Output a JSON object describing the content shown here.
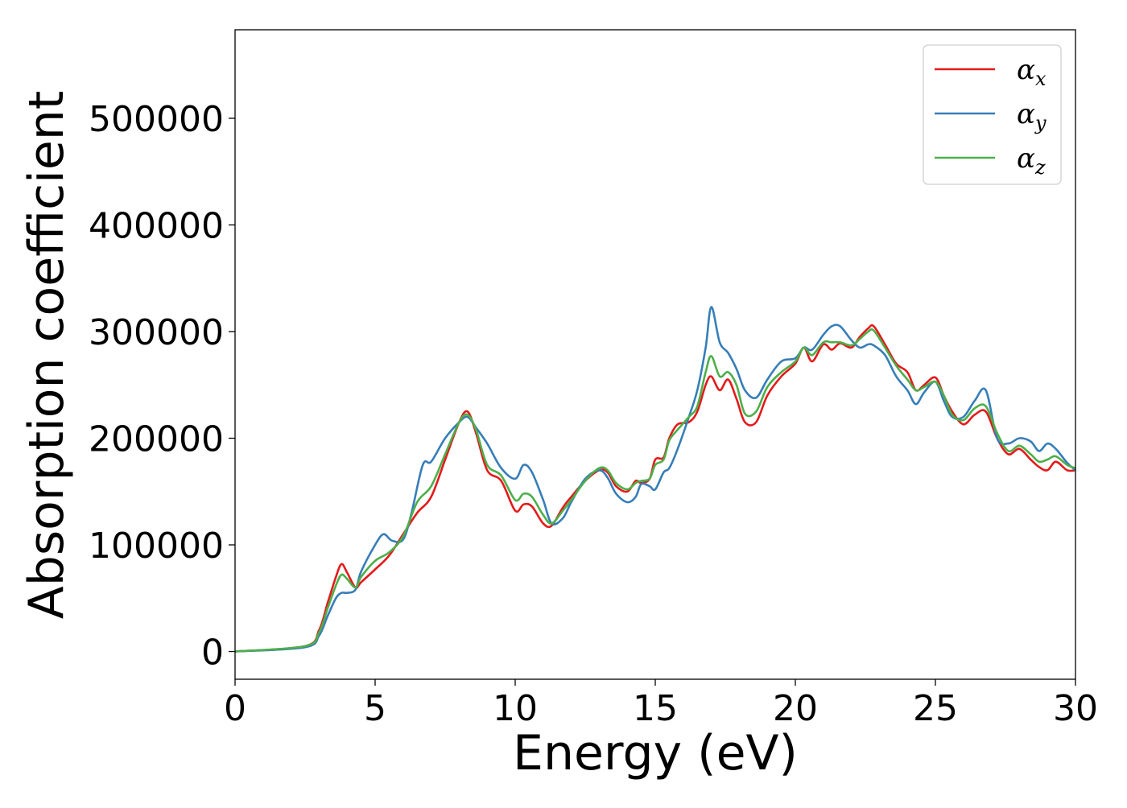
{
  "chart_data": {
    "type": "line",
    "xlabel": "Energy (eV)",
    "ylabel": "Absorption coefficient",
    "xlim": [
      0,
      30
    ],
    "ylim": [
      -26000,
      583000
    ],
    "x_ticks": [
      0,
      5,
      10,
      15,
      20,
      25,
      30
    ],
    "y_ticks": [
      0,
      100000,
      200000,
      300000,
      400000,
      500000
    ],
    "grid": false,
    "legend_position": "top-right",
    "series": [
      {
        "name": "αx",
        "symbol": "α",
        "subscript": "x",
        "color": "#e41a1c",
        "x": [
          0,
          2.5,
          3,
          3.3,
          3.6,
          3.8,
          4,
          4.3,
          4.5,
          5,
          5.5,
          6,
          6.5,
          7,
          7.5,
          8,
          8.3,
          8.6,
          9,
          9.5,
          10,
          10.3,
          10.6,
          11,
          11.3,
          11.7,
          12,
          12.5,
          13,
          13.3,
          13.6,
          14,
          14.3,
          14.5,
          14.8,
          15,
          15.3,
          15.5,
          15.8,
          16.2,
          16.5,
          16.8,
          17,
          17.3,
          17.6,
          17.9,
          18.2,
          18.6,
          19,
          19.5,
          20,
          20.3,
          20.6,
          21,
          21.3,
          21.6,
          22,
          22.3,
          22.6,
          22.8,
          23.2,
          23.6,
          24,
          24.3,
          24.6,
          25,
          25.3,
          25.6,
          26,
          26.4,
          26.8,
          27.2,
          27.6,
          28,
          28.4,
          28.7,
          29,
          29.3,
          29.7,
          30
        ],
        "y": [
          0,
          5000,
          20000,
          45000,
          70000,
          82000,
          74000,
          60000,
          65000,
          77000,
          90000,
          110000,
          130000,
          145000,
          180000,
          215000,
          225000,
          205000,
          170000,
          160000,
          132000,
          138000,
          136000,
          120000,
          118000,
          135000,
          145000,
          160000,
          170000,
          168000,
          155000,
          150000,
          160000,
          158000,
          162000,
          180000,
          182000,
          200000,
          213000,
          215000,
          225000,
          250000,
          258000,
          245000,
          255000,
          237000,
          215000,
          215000,
          240000,
          258000,
          270000,
          285000,
          272000,
          288000,
          283000,
          289000,
          285000,
          295000,
          303000,
          305000,
          288000,
          270000,
          262000,
          245000,
          250000,
          257000,
          240000,
          225000,
          213000,
          222000,
          225000,
          200000,
          185000,
          190000,
          180000,
          173000,
          170000,
          178000,
          170000,
          170000
        ]
      },
      {
        "name": "αy",
        "symbol": "α",
        "subscript": "y",
        "color": "#377eb8",
        "x": [
          0,
          2.5,
          3,
          3.3,
          3.6,
          3.8,
          4,
          4.3,
          4.5,
          5,
          5.3,
          5.6,
          6,
          6.3,
          6.7,
          7,
          7.5,
          8,
          8.3,
          8.6,
          9,
          9.5,
          10,
          10.3,
          10.6,
          11,
          11.3,
          11.7,
          12,
          12.5,
          13,
          13.3,
          13.6,
          14,
          14.3,
          14.5,
          14.8,
          15,
          15.3,
          15.5,
          15.8,
          16.2,
          16.5,
          16.8,
          17,
          17.3,
          17.6,
          17.9,
          18.2,
          18.6,
          19,
          19.5,
          20,
          20.3,
          20.6,
          21,
          21.3,
          21.6,
          22,
          22.3,
          22.6,
          22.8,
          23.2,
          23.6,
          24,
          24.3,
          24.6,
          25,
          25.3,
          25.6,
          26,
          26.4,
          26.8,
          27.2,
          27.6,
          28,
          28.4,
          28.7,
          29,
          29.3,
          29.7,
          30
        ],
        "y": [
          0,
          4000,
          15000,
          33000,
          50000,
          55000,
          55000,
          58000,
          75000,
          100000,
          110000,
          104000,
          105000,
          130000,
          175000,
          178000,
          200000,
          215000,
          220000,
          210000,
          195000,
          172000,
          162000,
          175000,
          168000,
          142000,
          120000,
          125000,
          140000,
          162000,
          170000,
          163000,
          148000,
          140000,
          145000,
          157000,
          155000,
          152000,
          168000,
          172000,
          190000,
          220000,
          245000,
          285000,
          323000,
          290000,
          280000,
          265000,
          245000,
          238000,
          255000,
          272000,
          275000,
          285000,
          283000,
          297000,
          305000,
          305000,
          292000,
          285000,
          288000,
          287000,
          278000,
          258000,
          245000,
          232000,
          243000,
          253000,
          235000,
          220000,
          220000,
          235000,
          245000,
          200000,
          195000,
          200000,
          197000,
          188000,
          195000,
          190000,
          177000,
          170000
        ]
      },
      {
        "name": "αz",
        "symbol": "α",
        "subscript": "z",
        "color": "#4daf4a",
        "x": [
          0,
          2.5,
          3,
          3.3,
          3.6,
          3.8,
          4,
          4.3,
          4.5,
          5,
          5.5,
          6,
          6.5,
          7,
          7.5,
          8,
          8.3,
          8.6,
          9,
          9.5,
          10,
          10.3,
          10.6,
          11,
          11.3,
          11.7,
          12,
          12.5,
          13,
          13.3,
          13.6,
          14,
          14.3,
          14.5,
          14.8,
          15,
          15.3,
          15.5,
          15.8,
          16.2,
          16.5,
          16.8,
          17,
          17.3,
          17.6,
          17.9,
          18.2,
          18.6,
          19,
          19.5,
          20,
          20.3,
          20.6,
          21,
          21.3,
          21.6,
          22,
          22.3,
          22.6,
          22.8,
          23.2,
          23.6,
          24,
          24.3,
          24.6,
          25,
          25.3,
          25.6,
          26,
          26.4,
          26.8,
          27.2,
          27.6,
          28,
          28.4,
          28.7,
          29,
          29.3,
          29.7,
          30
        ],
        "y": [
          0,
          5000,
          18000,
          40000,
          62000,
          72000,
          68000,
          60000,
          70000,
          85000,
          93000,
          108000,
          140000,
          155000,
          185000,
          215000,
          222000,
          208000,
          175000,
          165000,
          142000,
          148000,
          145000,
          128000,
          120000,
          132000,
          142000,
          160000,
          172000,
          170000,
          158000,
          152000,
          158000,
          160000,
          162000,
          175000,
          180000,
          198000,
          208000,
          220000,
          230000,
          262000,
          277000,
          258000,
          262000,
          250000,
          223000,
          225000,
          248000,
          262000,
          272000,
          285000,
          278000,
          290000,
          290000,
          290000,
          287000,
          293000,
          300000,
          301000,
          285000,
          268000,
          255000,
          245000,
          248000,
          253000,
          240000,
          222000,
          217000,
          228000,
          230000,
          205000,
          188000,
          193000,
          185000,
          178000,
          180000,
          183000,
          175000,
          172000
        ]
      }
    ]
  }
}
